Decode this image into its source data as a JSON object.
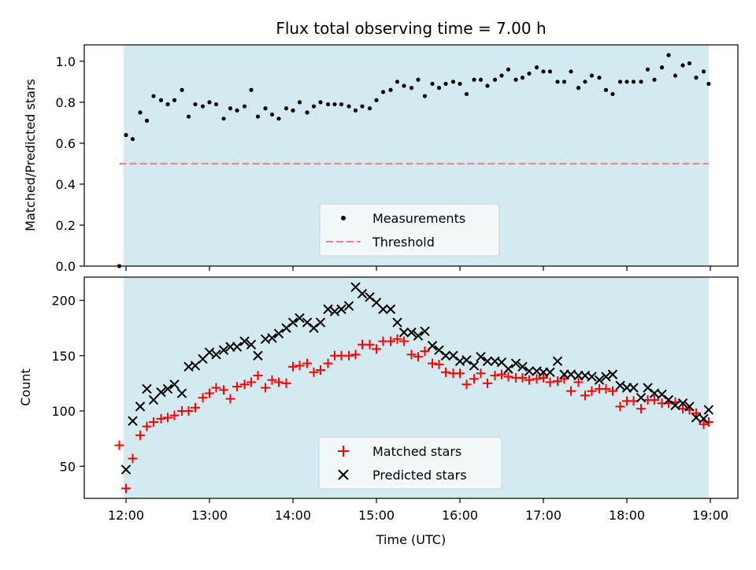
{
  "chart_data": {
    "title": "Flux total observing time = 7.00 h",
    "xlabel": "Time (UTC)",
    "x_tick_labels": [
      "12:00",
      "13:00",
      "14:00",
      "15:00",
      "16:00",
      "17:00",
      "18:00",
      "19:00"
    ],
    "x_unit": "hours UTC",
    "xlim": [
      11.5,
      19.33
    ],
    "observing_window": [
      11.97,
      18.98
    ],
    "shade_color": "#d4eaf1",
    "panels": [
      {
        "type": "scatter",
        "ylabel": "Matched/Predicted stars",
        "ylim": [
          0.0,
          1.08
        ],
        "y_ticks": [
          0.0,
          0.2,
          0.4,
          0.6,
          0.8,
          1.0
        ],
        "y_tick_labels": [
          "0.0",
          "0.2",
          "0.4",
          "0.6",
          "0.8",
          "1.0"
        ],
        "legend_position": "lower-center",
        "threshold": {
          "name": "Threshold",
          "value": 0.5,
          "x_range": [
            11.92,
            18.98
          ],
          "color": "#f08080"
        },
        "series": [
          {
            "name": "Measurements",
            "marker": "dot",
            "color": "#000000",
            "x": [
              11.92,
              12.0,
              12.08,
              12.17,
              12.25,
              12.33,
              12.42,
              12.5,
              12.58,
              12.67,
              12.75,
              12.83,
              12.92,
              13.0,
              13.08,
              13.17,
              13.25,
              13.33,
              13.42,
              13.5,
              13.58,
              13.67,
              13.75,
              13.83,
              13.92,
              14.0,
              14.08,
              14.17,
              14.25,
              14.33,
              14.42,
              14.5,
              14.58,
              14.67,
              14.75,
              14.83,
              14.92,
              15.0,
              15.08,
              15.17,
              15.25,
              15.33,
              15.42,
              15.5,
              15.58,
              15.67,
              15.75,
              15.83,
              15.92,
              16.0,
              16.08,
              16.17,
              16.25,
              16.33,
              16.42,
              16.5,
              16.58,
              16.67,
              16.75,
              16.83,
              16.92,
              17.0,
              17.08,
              17.17,
              17.25,
              17.33,
              17.42,
              17.5,
              17.58,
              17.67,
              17.75,
              17.83,
              17.92,
              18.0,
              18.08,
              18.17,
              18.25,
              18.33,
              18.42,
              18.5,
              18.58,
              18.67,
              18.75,
              18.83,
              18.92,
              18.98
            ],
            "y": [
              0.0,
              0.64,
              0.62,
              0.75,
              0.71,
              0.83,
              0.81,
              0.79,
              0.81,
              0.86,
              0.73,
              0.79,
              0.78,
              0.8,
              0.79,
              0.72,
              0.77,
              0.76,
              0.78,
              0.86,
              0.73,
              0.77,
              0.74,
              0.72,
              0.77,
              0.76,
              0.8,
              0.75,
              0.78,
              0.8,
              0.79,
              0.79,
              0.79,
              0.78,
              0.76,
              0.78,
              0.77,
              0.81,
              0.85,
              0.86,
              0.9,
              0.88,
              0.87,
              0.91,
              0.83,
              0.89,
              0.87,
              0.89,
              0.9,
              0.89,
              0.84,
              0.91,
              0.91,
              0.88,
              0.91,
              0.93,
              0.96,
              0.91,
              0.92,
              0.94,
              0.97,
              0.95,
              0.95,
              0.9,
              0.9,
              0.95,
              0.87,
              0.9,
              0.93,
              0.92,
              0.86,
              0.84,
              0.9,
              0.9,
              0.9,
              0.9,
              0.96,
              0.91,
              0.97,
              1.03,
              0.93,
              0.98,
              0.99,
              0.92,
              0.95,
              0.89
            ]
          }
        ]
      },
      {
        "type": "scatter",
        "ylabel": "Count",
        "ylim": [
          21,
          221
        ],
        "y_ticks": [
          50,
          100,
          150,
          200
        ],
        "y_tick_labels": [
          "50",
          "100",
          "150",
          "200"
        ],
        "legend_position": "lower-center",
        "series": [
          {
            "name": "Matched stars",
            "marker": "plus",
            "color": "#ff0000",
            "x": [
              11.92,
              12.0,
              12.08,
              12.17,
              12.25,
              12.33,
              12.42,
              12.5,
              12.58,
              12.67,
              12.75,
              12.83,
              12.92,
              13.0,
              13.08,
              13.17,
              13.25,
              13.33,
              13.42,
              13.5,
              13.58,
              13.67,
              13.75,
              13.83,
              13.92,
              14.0,
              14.08,
              14.17,
              14.25,
              14.33,
              14.42,
              14.5,
              14.58,
              14.67,
              14.75,
              14.83,
              14.92,
              15.0,
              15.08,
              15.17,
              15.25,
              15.33,
              15.42,
              15.5,
              15.58,
              15.67,
              15.75,
              15.83,
              15.92,
              16.0,
              16.08,
              16.17,
              16.25,
              16.33,
              16.42,
              16.5,
              16.58,
              16.67,
              16.75,
              16.83,
              16.92,
              17.0,
              17.08,
              17.17,
              17.25,
              17.33,
              17.42,
              17.5,
              17.58,
              17.67,
              17.75,
              17.83,
              17.92,
              18.0,
              18.08,
              18.17,
              18.25,
              18.33,
              18.42,
              18.5,
              18.58,
              18.67,
              18.75,
              18.83,
              18.92,
              18.98
            ],
            "y": [
              69,
              30,
              57,
              78,
              86,
              90,
              93,
              94,
              96,
              100,
              100,
              103,
              112,
              116,
              121,
              119,
              111,
              122,
              124,
              126,
              132,
              121,
              128,
              126,
              125,
              140,
              141,
              143,
              135,
              137,
              143,
              150,
              150,
              150,
              151,
              160,
              160,
              156,
              163,
              163,
              165,
              163,
              151,
              149,
              154,
              143,
              142,
              135,
              134,
              134,
              124,
              129,
              134,
              125,
              132,
              133,
              131,
              130,
              130,
              128,
              129,
              130,
              126,
              127,
              129,
              118,
              126,
              114,
              118,
              120,
              120,
              118,
              104,
              109,
              109,
              102,
              110,
              110,
              107,
              107,
              108,
              102,
              101,
              98,
              88,
              90
            ]
          },
          {
            "name": "Predicted stars",
            "marker": "cross",
            "color": "#000000",
            "x": [
              12.0,
              12.08,
              12.17,
              12.25,
              12.33,
              12.42,
              12.5,
              12.58,
              12.67,
              12.75,
              12.83,
              12.92,
              13.0,
              13.08,
              13.17,
              13.25,
              13.33,
              13.42,
              13.5,
              13.58,
              13.67,
              13.75,
              13.83,
              13.92,
              14.0,
              14.08,
              14.17,
              14.25,
              14.33,
              14.42,
              14.5,
              14.58,
              14.67,
              14.75,
              14.83,
              14.92,
              15.0,
              15.08,
              15.17,
              15.25,
              15.33,
              15.42,
              15.5,
              15.58,
              15.67,
              15.75,
              15.83,
              15.92,
              16.0,
              16.08,
              16.17,
              16.25,
              16.33,
              16.42,
              16.5,
              16.58,
              16.67,
              16.75,
              16.83,
              16.92,
              17.0,
              17.08,
              17.17,
              17.25,
              17.33,
              17.42,
              17.5,
              17.58,
              17.67,
              17.75,
              17.83,
              17.92,
              18.0,
              18.08,
              18.17,
              18.25,
              18.33,
              18.42,
              18.5,
              18.58,
              18.67,
              18.75,
              18.83,
              18.92,
              18.98
            ],
            "y": [
              47,
              91,
              104,
              120,
              110,
              117,
              120,
              124,
              116,
              140,
              141,
              147,
              153,
              151,
              155,
              158,
              158,
              163,
              160,
              150,
              165,
              166,
              170,
              175,
              180,
              184,
              180,
              175,
              180,
              192,
              190,
              192,
              195,
              212,
              206,
              203,
              198,
              192,
              192,
              180,
              171,
              171,
              168,
              172,
              159,
              155,
              150,
              150,
              145,
              146,
              141,
              149,
              145,
              145,
              144,
              138,
              143,
              140,
              136,
              136,
              135,
              135,
              145,
              133,
              133,
              132,
              132,
              131,
              128,
              131,
              133,
              123,
              121,
              121,
              112,
              121,
              116,
              115,
              110,
              105,
              107,
              104,
              94,
              93,
              101
            ]
          }
        ]
      }
    ]
  }
}
